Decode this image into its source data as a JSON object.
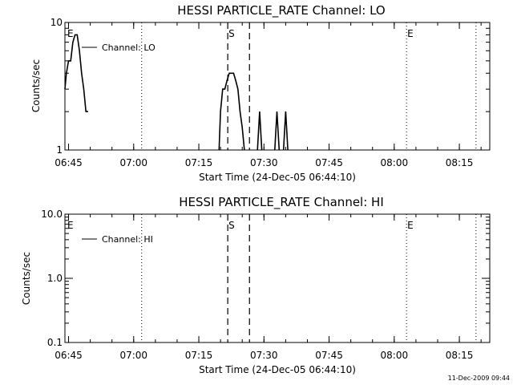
{
  "chart_data": [
    {
      "type": "line",
      "title": "HESSI PARTICLE_RATE Channel: LO",
      "xlabel": "Start Time (24-Dec-05 06:44:10)",
      "ylabel": "Counts/sec",
      "x_ticks": [
        "06:45",
        "07:00",
        "07:15",
        "07:30",
        "07:45",
        "08:00",
        "08:15"
      ],
      "y_ticks": [
        "1",
        "10"
      ],
      "y_scale": "log",
      "ylim": [
        1,
        10
      ],
      "grid": false,
      "legend": {
        "position": "top-left",
        "label": "Channel: LO"
      },
      "markers": [
        {
          "label": "E",
          "time": "06:44:10",
          "style": "none"
        },
        {
          "label": "",
          "time": "07:01:50",
          "style": "dotted"
        },
        {
          "label": "S",
          "time": "07:21:40",
          "style": "dashed"
        },
        {
          "label": "",
          "time": "07:26:40",
          "style": "dashed"
        },
        {
          "label": "E",
          "time": "08:02:50",
          "style": "dotted"
        },
        {
          "label": "",
          "time": "08:18:50",
          "style": "dotted"
        }
      ],
      "series": [
        {
          "segments": [
            [
              [
                "06:44:10",
                3.0
              ],
              [
                "06:44:30",
                4.0
              ],
              [
                "06:45:00",
                5.0
              ],
              [
                "06:45:30",
                5.0
              ],
              [
                "06:46:00",
                7.0
              ],
              [
                "06:46:30",
                8.0
              ],
              [
                "06:47:00",
                8.0
              ],
              [
                "06:47:30",
                6.0
              ],
              [
                "06:48:00",
                4.0
              ],
              [
                "06:48:30",
                3.0
              ],
              [
                "06:49:00",
                2.0
              ],
              [
                "06:49:30",
                2.0
              ]
            ],
            [
              [
                "07:19:40",
                1.0
              ],
              [
                "07:20:00",
                2.0
              ],
              [
                "07:20:30",
                3.0
              ],
              [
                "07:21:00",
                3.0
              ],
              [
                "07:21:30",
                3.5
              ],
              [
                "07:22:00",
                4.0
              ],
              [
                "07:23:00",
                4.0
              ],
              [
                "07:23:30",
                3.5
              ],
              [
                "07:24:00",
                3.0
              ],
              [
                "07:24:30",
                2.0
              ],
              [
                "07:25:00",
                1.5
              ],
              [
                "07:25:30",
                1.0
              ]
            ],
            [
              [
                "07:28:30",
                1.0
              ],
              [
                "07:29:00",
                2.0
              ],
              [
                "07:29:30",
                1.0
              ]
            ],
            [
              [
                "07:32:30",
                1.0
              ],
              [
                "07:33:00",
                2.0
              ],
              [
                "07:33:30",
                1.0
              ]
            ],
            [
              [
                "07:34:30",
                1.0
              ],
              [
                "07:35:00",
                2.0
              ],
              [
                "07:35:30",
                1.0
              ]
            ]
          ]
        }
      ]
    },
    {
      "type": "line",
      "title": "HESSI PARTICLE_RATE Channel: HI",
      "xlabel": "Start Time (24-Dec-05 06:44:10)",
      "ylabel": "Counts/sec",
      "x_ticks": [
        "06:45",
        "07:00",
        "07:15",
        "07:30",
        "07:45",
        "08:00",
        "08:15"
      ],
      "y_ticks": [
        "0.1",
        "1.0",
        "10.0"
      ],
      "y_scale": "log",
      "ylim": [
        0.1,
        10
      ],
      "grid": false,
      "legend": {
        "position": "top-left",
        "label": "Channel: HI"
      },
      "markers": [
        {
          "label": "E",
          "time": "06:44:10",
          "style": "none"
        },
        {
          "label": "",
          "time": "07:01:50",
          "style": "dotted"
        },
        {
          "label": "S",
          "time": "07:21:40",
          "style": "dashed"
        },
        {
          "label": "",
          "time": "07:26:40",
          "style": "dashed"
        },
        {
          "label": "E",
          "time": "08:02:50",
          "style": "dotted"
        },
        {
          "label": "",
          "time": "08:18:50",
          "style": "dotted"
        }
      ],
      "series": [
        {
          "segments": []
        }
      ]
    }
  ],
  "footer": {
    "timestamp": "11-Dec-2009 09:44"
  }
}
